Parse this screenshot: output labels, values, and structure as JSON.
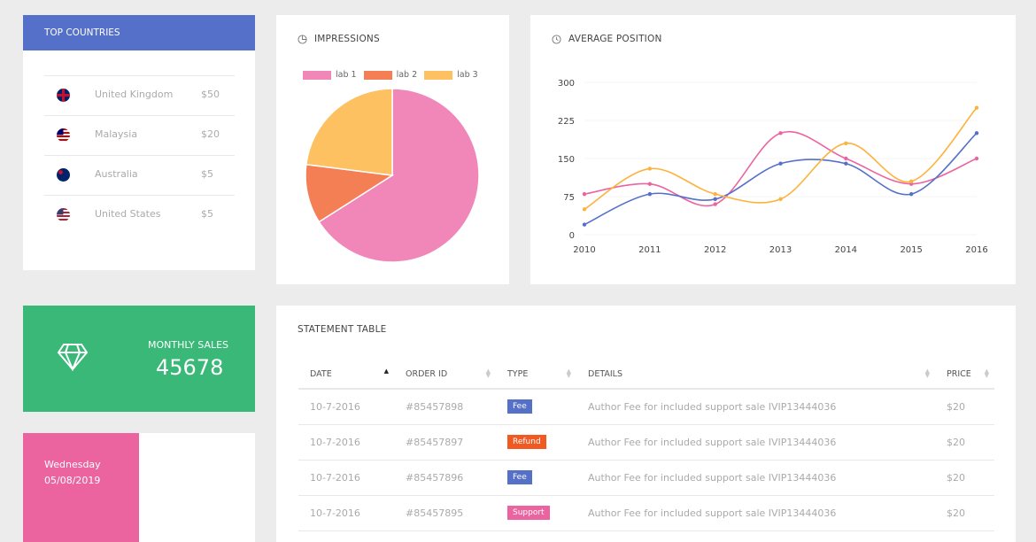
{
  "top_countries": {
    "title": "TOP COUNTRIES",
    "rows": [
      {
        "country": "United Kingdom",
        "amount": "$50",
        "flag": "uk-flag"
      },
      {
        "country": "Malaysia",
        "amount": "$20",
        "flag": "malaysia-flag"
      },
      {
        "country": "Australia",
        "amount": "$5",
        "flag": "australia-flag"
      },
      {
        "country": "United States",
        "amount": "$5",
        "flag": "us-flag"
      }
    ]
  },
  "impressions": {
    "title": "IMPRESSIONS",
    "icon": "pie-chart-icon"
  },
  "average_position": {
    "title": "AVERAGE POSITION",
    "icon": "clock-icon"
  },
  "chart_data": [
    {
      "type": "pie",
      "categories": [
        "lab 1",
        "lab 2",
        "lab 3"
      ],
      "values": [
        66,
        11,
        23
      ],
      "colors": [
        "#f087b8",
        "#f47f55",
        "#fdc162"
      ],
      "legend": "top"
    },
    {
      "type": "line",
      "x": [
        "2010",
        "2011",
        "2012",
        "2013",
        "2014",
        "2015",
        "2016"
      ],
      "ylim": [
        0,
        300
      ],
      "yticks": [
        "0",
        "75",
        "150",
        "225",
        "300"
      ],
      "grid": true,
      "series": [
        {
          "color": "#eb64a0",
          "values": [
            80,
            100,
            60,
            200,
            150,
            100,
            150
          ]
        },
        {
          "color": "#5570c9",
          "values": [
            20,
            80,
            70,
            140,
            140,
            80,
            200
          ]
        },
        {
          "color": "#fdb23c",
          "values": [
            50,
            130,
            80,
            70,
            180,
            105,
            250
          ]
        }
      ]
    }
  ],
  "monthly_sales": {
    "label": "MONTHLY SALES",
    "value": "45678",
    "icon": "diamond-icon",
    "color": "#3ab878"
  },
  "date_card": {
    "day": "Wednesday",
    "date": "05/08/2019",
    "color": "#eb64a0"
  },
  "statement": {
    "title": "STATEMENT TABLE",
    "columns": [
      "DATE",
      "ORDER ID",
      "TYPE",
      "DETAILS",
      "PRICE"
    ],
    "rows": [
      {
        "date": "10-7-2016",
        "order": "#85457898",
        "type": "Fee",
        "type_color": "#5570c9",
        "details": "Author Fee for included support sale IVIP13444036",
        "price": "$20"
      },
      {
        "date": "10-7-2016",
        "order": "#85457897",
        "type": "Refund",
        "type_color": "#f05a22",
        "details": "Author Fee for included support sale IVIP13444036",
        "price": "$20"
      },
      {
        "date": "10-7-2016",
        "order": "#85457896",
        "type": "Fee",
        "type_color": "#5570c9",
        "details": "Author Fee for included support sale IVIP13444036",
        "price": "$20"
      },
      {
        "date": "10-7-2016",
        "order": "#85457895",
        "type": "Support",
        "type_color": "#eb64a0",
        "details": "Author Fee for included support sale IVIP13444036",
        "price": "$20"
      }
    ]
  }
}
